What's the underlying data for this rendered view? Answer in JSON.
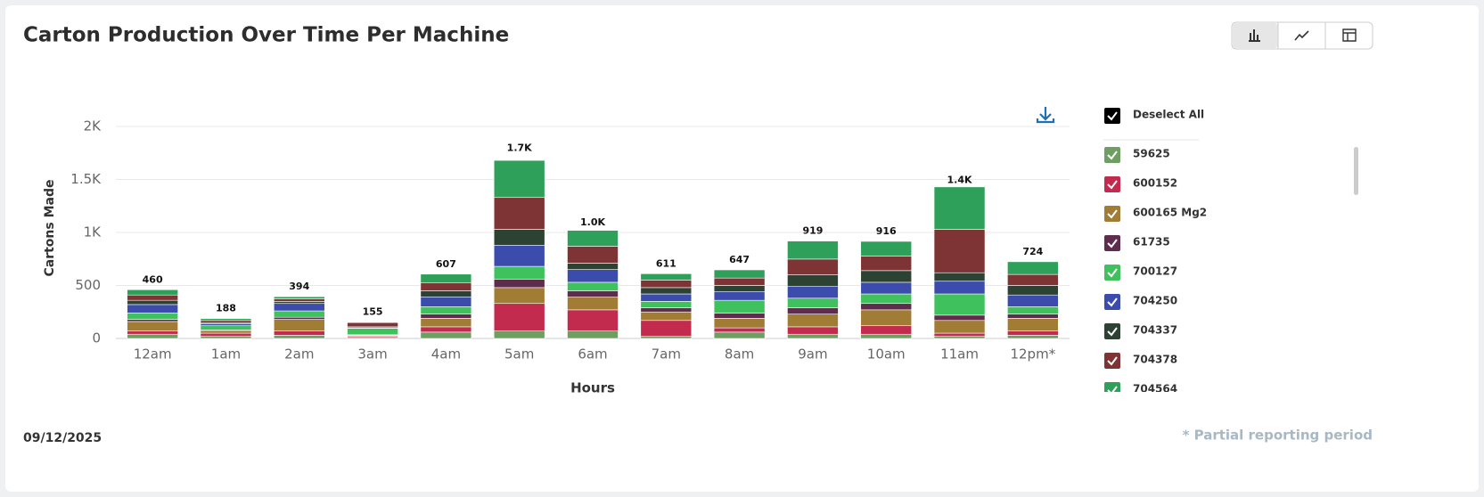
{
  "chart_data": {
    "type": "stacked-bar",
    "title": "Carton Production Over Time Per Machine",
    "x_label": "Hours",
    "y_label": "Cartons Made",
    "categories": [
      "12am",
      "1am",
      "2am",
      "3am",
      "4am",
      "5am",
      "6am",
      "7am",
      "8am",
      "9am",
      "10am",
      "11am",
      "12pm*"
    ],
    "series": [
      {
        "name": "59625",
        "color": "#6f9e63",
        "values": [
          40,
          20,
          30,
          10,
          60,
          70,
          70,
          20,
          60,
          40,
          40,
          20,
          30
        ]
      },
      {
        "name": "600152",
        "color": "#c22b4e",
        "values": [
          30,
          30,
          40,
          10,
          50,
          260,
          200,
          150,
          40,
          70,
          80,
          30,
          40
        ]
      },
      {
        "name": "600165 Mg2",
        "color": "#a07c34",
        "values": [
          90,
          20,
          110,
          10,
          80,
          150,
          120,
          80,
          90,
          120,
          150,
          120,
          120
        ]
      },
      {
        "name": "61735",
        "color": "#5e2c4c",
        "values": [
          20,
          10,
          20,
          5,
          40,
          80,
          60,
          40,
          50,
          60,
          60,
          50,
          40
        ]
      },
      {
        "name": "700127",
        "color": "#3fc25e",
        "values": [
          60,
          40,
          60,
          60,
          70,
          120,
          80,
          60,
          120,
          90,
          90,
          200,
          70
        ]
      },
      {
        "name": "704250",
        "color": "#3c4cad",
        "values": [
          80,
          20,
          70,
          5,
          90,
          200,
          120,
          70,
          80,
          110,
          110,
          120,
          110
        ]
      },
      {
        "name": "704337",
        "color": "#2c4232",
        "values": [
          40,
          10,
          20,
          10,
          60,
          150,
          60,
          60,
          60,
          110,
          110,
          80,
          90
        ]
      },
      {
        "name": "704378",
        "color": "#7e3434",
        "values": [
          50,
          20,
          24,
          40,
          77,
          300,
          160,
          71,
          70,
          149,
          136,
          410,
          104
        ]
      },
      {
        "name": "704564",
        "color": "#2fa05a",
        "values": [
          50,
          18,
          20,
          5,
          80,
          350,
          150,
          60,
          77,
          170,
          140,
          400,
          120
        ]
      }
    ],
    "totals": {
      "values": [
        460,
        188,
        394,
        155,
        607,
        1700,
        1000,
        611,
        647,
        919,
        916,
        1400,
        724
      ],
      "value_labels": [
        "460",
        "188",
        "394",
        "155",
        "607",
        "1.7K",
        "1.0K",
        "611",
        "647",
        "919",
        "916",
        "1.4K",
        "724"
      ]
    },
    "ylim": [
      0,
      2000
    ],
    "yticks": [
      0,
      500,
      {
        "value": 1000,
        "label": "1K"
      },
      {
        "value": 1500,
        "label": "1.5K"
      },
      {
        "value": 2000,
        "label": "2K"
      }
    ],
    "grid": true,
    "legend_toggle": "Deselect All"
  },
  "date": "09/12/2025",
  "footnote": "* Partial reporting period"
}
